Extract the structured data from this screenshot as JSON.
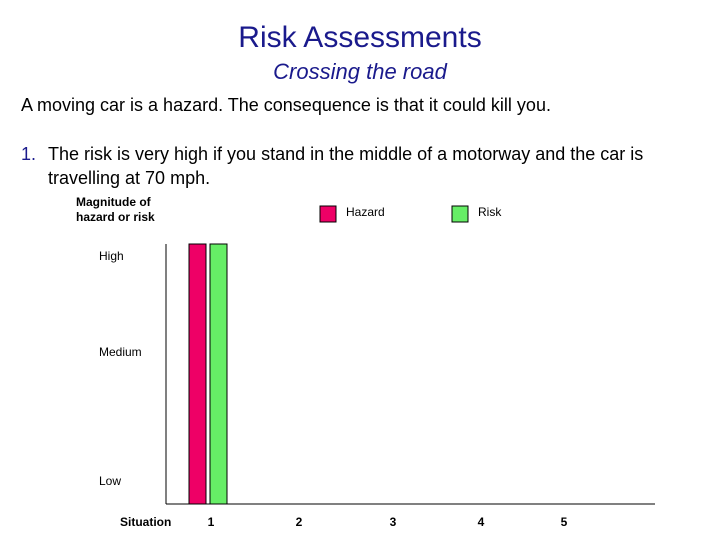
{
  "title": "Risk Assessments",
  "subtitle": "Crossing the road",
  "statement": "A moving car is a hazard.  The consequence is that it could kill you.",
  "point": {
    "number": "1.",
    "text": "The risk is very high if you stand in the middle of a motorway and the car is travelling at 70 mph."
  },
  "chart_data": {
    "type": "bar",
    "ylabel_line1": "Magnitude of",
    "ylabel_line2": "hazard or risk",
    "xlabel": "Situation",
    "categories": [
      "1",
      "2",
      "3",
      "4",
      "5"
    ],
    "y_levels": [
      "Low",
      "Medium",
      "High"
    ],
    "ylim": [
      0,
      3.35
    ],
    "legend_position": "top-right",
    "series": [
      {
        "name": "Hazard",
        "color": "#ee0066",
        "values": [
          3.35,
          null,
          null,
          null,
          null
        ]
      },
      {
        "name": "Risk",
        "color": "#66ee66",
        "values": [
          3.35,
          null,
          null,
          null,
          null
        ]
      }
    ]
  }
}
